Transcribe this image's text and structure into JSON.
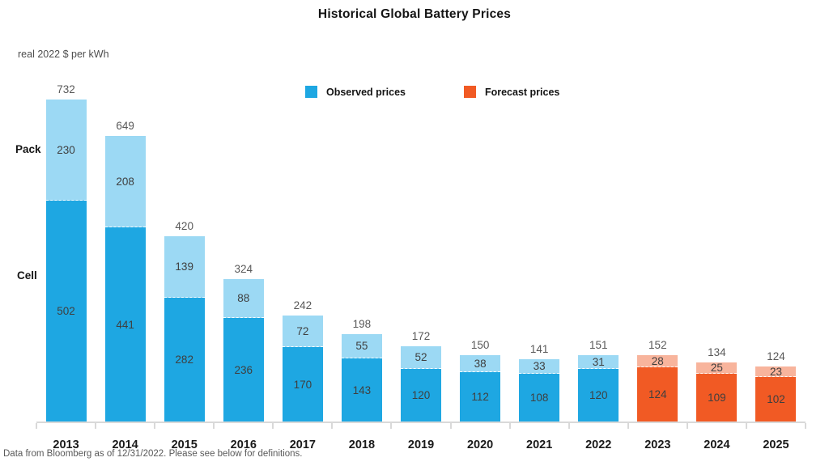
{
  "footer_note": "Data from Bloomberg as of 12/31/2022.  Please see below for definitions.",
  "side_labels": {
    "pack": "Pack",
    "cell": "Cell"
  },
  "chart_data": {
    "type": "bar",
    "stacked": true,
    "title": "Historical Global Battery Prices",
    "ylabel": "real 2022 $ per kWh",
    "xlabel": "",
    "categories": [
      "2013",
      "2014",
      "2015",
      "2016",
      "2017",
      "2018",
      "2019",
      "2020",
      "2021",
      "2022",
      "2023",
      "2024",
      "2025"
    ],
    "series": [
      {
        "name": "Cell",
        "values": [
          502,
          441,
          282,
          236,
          170,
          143,
          120,
          112,
          108,
          120,
          124,
          109,
          102
        ]
      },
      {
        "name": "Pack",
        "values": [
          230,
          208,
          139,
          88,
          72,
          55,
          52,
          38,
          33,
          31,
          28,
          25,
          23
        ]
      }
    ],
    "totals": [
      732,
      649,
      420,
      324,
      242,
      198,
      172,
      150,
      141,
      151,
      152,
      134,
      124
    ],
    "forecast_from": "2023",
    "ylim": [
      0,
      780
    ],
    "grid": false,
    "legend_position": "top",
    "legend": [
      {
        "label": "Observed prices",
        "color": "#1EA7E2"
      },
      {
        "label": "Forecast prices",
        "color": "#F15A24"
      }
    ],
    "colors": {
      "observed_cell": "#1EA7E2",
      "observed_pack": "#9CD9F4",
      "forecast_cell": "#F15A24",
      "forecast_pack": "#F8B49C",
      "baseline": "#d9d9d9",
      "total_label": "#595959",
      "value_label": "#3f3f3f"
    }
  }
}
